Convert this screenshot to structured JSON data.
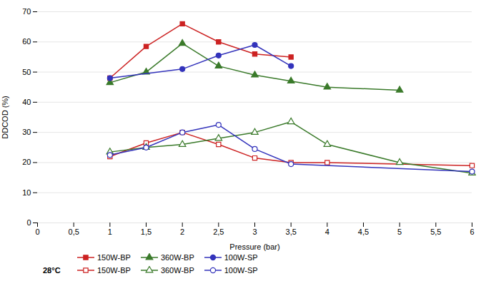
{
  "chart_data": {
    "type": "line",
    "xlabel": "Pressure (bar)",
    "ylabel": "DDCOD (%)",
    "xlim": [
      0,
      6
    ],
    "ylim": [
      0,
      70
    ],
    "xticks": [
      0,
      {
        "value": 0.5,
        "label": "0,5"
      },
      1,
      {
        "value": 1.5,
        "label": "1,5"
      },
      2,
      {
        "value": 2.5,
        "label": "2,5"
      },
      3,
      {
        "value": 3.5,
        "label": "3,5"
      },
      4,
      {
        "value": 4.5,
        "label": "4,5"
      },
      5,
      {
        "value": 5.5,
        "label": "5,5"
      },
      6
    ],
    "yticks": [
      0,
      10,
      20,
      30,
      40,
      50,
      60,
      70
    ],
    "grid": "y",
    "legend": "bottom",
    "annotations": [
      "28°C"
    ],
    "series": [
      {
        "name": "150W-BP",
        "color": "#cc2222",
        "marker": "square",
        "x": [
          1.0,
          1.5,
          2.0,
          2.5,
          3.0,
          3.5
        ],
        "values": [
          48.0,
          58.5,
          66.0,
          60.0,
          56.0,
          55.0
        ]
      },
      {
        "name": "360W-BP",
        "color": "#3a7a2a",
        "marker": "triangle",
        "x": [
          1.0,
          1.5,
          2.0,
          2.5,
          3.0,
          3.5,
          4.0,
          5.0
        ],
        "values": [
          46.5,
          50.0,
          59.5,
          52.0,
          49.0,
          47.0,
          45.0,
          44.0
        ]
      },
      {
        "name": "100W-SP",
        "color": "#3333bb",
        "marker": "circle",
        "x": [
          1.0,
          2.0,
          2.5,
          3.0,
          3.5
        ],
        "values": [
          48.0,
          51.0,
          55.5,
          59.0,
          52.0
        ]
      },
      {
        "name": "150W-BP",
        "color": "#cc2222",
        "marker": "square-open",
        "x": [
          1.0,
          1.5,
          2.0,
          2.5,
          3.0,
          3.5,
          4.0,
          6.0
        ],
        "values": [
          22.0,
          26.5,
          30.0,
          26.0,
          21.5,
          20.0,
          20.0,
          19.0
        ]
      },
      {
        "name": "360W-BP",
        "color": "#3a7a2a",
        "marker": "triangle-open",
        "x": [
          1.0,
          1.5,
          2.0,
          2.5,
          3.0,
          3.5,
          4.0,
          5.0,
          6.0
        ],
        "values": [
          23.5,
          25.0,
          26.0,
          28.0,
          30.0,
          33.5,
          26.0,
          20.0,
          16.5
        ]
      },
      {
        "name": "100W-SP",
        "color": "#3333bb",
        "marker": "circle-open",
        "x": [
          1.0,
          1.5,
          2.0,
          2.5,
          3.0,
          3.5,
          6.0
        ],
        "values": [
          22.5,
          25.0,
          30.0,
          32.5,
          24.5,
          19.5,
          17.0
        ]
      }
    ]
  }
}
